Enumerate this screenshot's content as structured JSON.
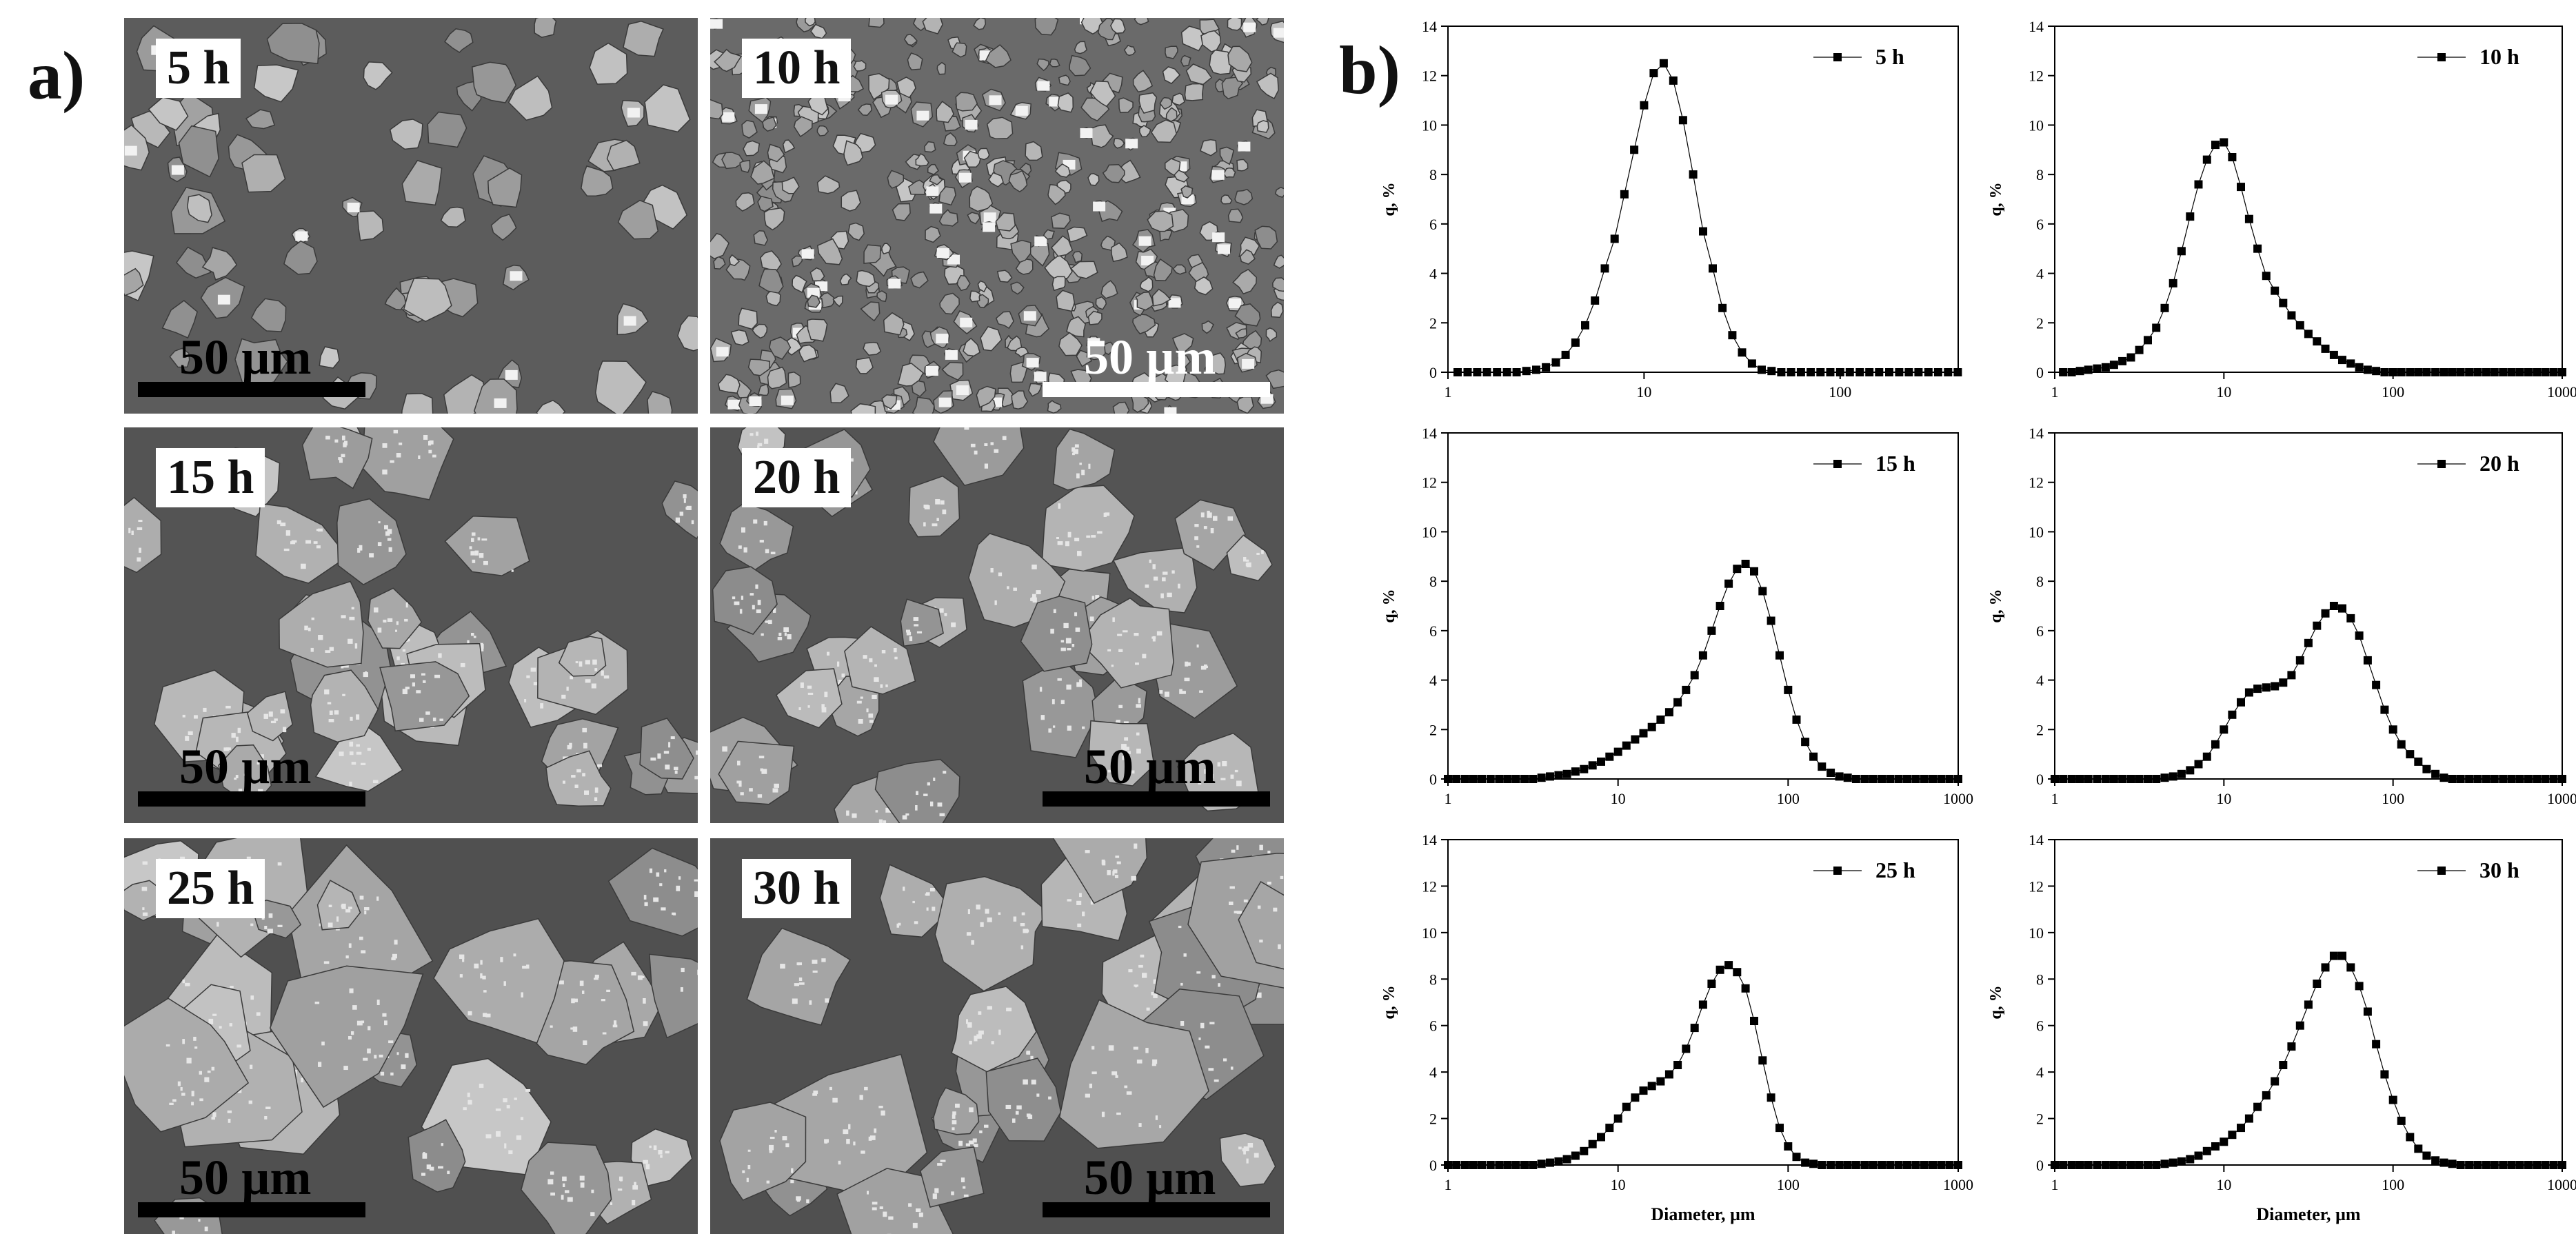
{
  "panel_labels": {
    "a": "a)",
    "b": "b)"
  },
  "sem_images": [
    {
      "time": "5 h",
      "scale": "50 µm",
      "scale_side": "left",
      "scale_color": "#000000",
      "texture": "coarse-flakes"
    },
    {
      "time": "10 h",
      "scale": "50 µm",
      "scale_side": "right",
      "scale_color": "#ffffff",
      "texture": "fine-dense"
    },
    {
      "time": "15 h",
      "scale": "50 µm",
      "scale_side": "left",
      "scale_color": "#000000",
      "texture": "agglomerates"
    },
    {
      "time": "20 h",
      "scale": "50 µm",
      "scale_side": "right",
      "scale_color": "#000000",
      "texture": "agglomerates"
    },
    {
      "time": "25 h",
      "scale": "50 µm",
      "scale_side": "left",
      "scale_color": "#000000",
      "texture": "large-agglomerates"
    },
    {
      "time": "30 h",
      "scale": "50 µm",
      "scale_side": "right",
      "scale_color": "#000000",
      "texture": "large-agglomerates"
    }
  ],
  "chart_data": [
    {
      "type": "line",
      "marker": "square",
      "legend": "5 h",
      "xscale": "log",
      "xlim": [
        1,
        400
      ],
      "ylim": [
        0,
        14
      ],
      "xticks": [
        1,
        10,
        100
      ],
      "yticks": [
        0,
        2,
        4,
        6,
        8,
        10,
        12,
        14
      ],
      "xlabel": "",
      "ylabel": "q, %",
      "x": [
        1.12,
        1.26,
        1.41,
        1.58,
        1.78,
        2,
        2.24,
        2.51,
        2.82,
        3.16,
        3.55,
        3.98,
        4.47,
        5.01,
        5.62,
        6.31,
        7.08,
        7.94,
        8.91,
        10,
        11.2,
        12.6,
        14.1,
        15.8,
        17.8,
        20,
        22.4,
        25.1,
        28.2,
        31.6,
        35.5,
        39.8,
        44.7,
        50.1,
        56.2,
        63.1,
        70.8,
        79.4,
        89.1,
        100,
        112,
        126,
        141,
        158,
        178,
        200,
        224,
        251,
        282,
        316,
        355,
        398
      ],
      "y": [
        0,
        0,
        0,
        0,
        0,
        0,
        0,
        0.05,
        0.1,
        0.2,
        0.4,
        0.7,
        1.2,
        1.9,
        2.9,
        4.2,
        5.4,
        7.2,
        9.0,
        10.8,
        12.1,
        12.5,
        11.8,
        10.2,
        8.0,
        5.7,
        4.2,
        2.6,
        1.5,
        0.8,
        0.35,
        0.1,
        0.05,
        0,
        0,
        0,
        0,
        0,
        0,
        0,
        0,
        0,
        0,
        0,
        0,
        0,
        0,
        0,
        0,
        0,
        0,
        0
      ]
    },
    {
      "type": "line",
      "marker": "square",
      "legend": "10 h",
      "xscale": "log",
      "xlim": [
        1,
        1000
      ],
      "ylim": [
        0,
        14
      ],
      "xticks": [
        1,
        10,
        100,
        1000
      ],
      "yticks": [
        0,
        2,
        4,
        6,
        8,
        10,
        12,
        14
      ],
      "xlabel": "",
      "ylabel": "q, %",
      "x": [
        1.12,
        1.26,
        1.41,
        1.58,
        1.78,
        2,
        2.24,
        2.51,
        2.82,
        3.16,
        3.55,
        3.98,
        4.47,
        5.01,
        5.62,
        6.31,
        7.08,
        7.94,
        8.91,
        10,
        11.2,
        12.6,
        14.1,
        15.8,
        17.8,
        20,
        22.4,
        25.1,
        28.2,
        31.6,
        35.5,
        39.8,
        44.7,
        50.1,
        56.2,
        63.1,
        70.8,
        79.4,
        89.1,
        100,
        112,
        126,
        141,
        158,
        178,
        200,
        224,
        251,
        282,
        316,
        355,
        398,
        447,
        501,
        562,
        631,
        708,
        794,
        891,
        1000
      ],
      "y": [
        0,
        0,
        0.05,
        0.1,
        0.15,
        0.2,
        0.3,
        0.45,
        0.6,
        0.9,
        1.3,
        1.8,
        2.6,
        3.6,
        4.9,
        6.3,
        7.6,
        8.6,
        9.2,
        9.3,
        8.7,
        7.5,
        6.2,
        5.0,
        3.9,
        3.3,
        2.8,
        2.3,
        1.9,
        1.55,
        1.25,
        0.95,
        0.7,
        0.5,
        0.35,
        0.2,
        0.1,
        0.05,
        0,
        0,
        0,
        0,
        0,
        0,
        0,
        0,
        0,
        0,
        0,
        0,
        0,
        0,
        0,
        0,
        0,
        0,
        0,
        0,
        0,
        0
      ]
    },
    {
      "type": "line",
      "marker": "square",
      "legend": "15 h",
      "xscale": "log",
      "xlim": [
        1,
        1000
      ],
      "ylim": [
        0,
        14
      ],
      "xticks": [
        1,
        10,
        100,
        1000
      ],
      "yticks": [
        0,
        2,
        4,
        6,
        8,
        10,
        12,
        14
      ],
      "xlabel": "",
      "ylabel": "q, %",
      "x": [
        1,
        1.12,
        1.26,
        1.41,
        1.58,
        1.78,
        2,
        2.24,
        2.51,
        2.82,
        3.16,
        3.55,
        3.98,
        4.47,
        5.01,
        5.62,
        6.31,
        7.08,
        7.94,
        8.91,
        10,
        11.2,
        12.6,
        14.1,
        15.8,
        17.8,
        20,
        22.4,
        25.1,
        28.2,
        31.6,
        35.5,
        39.8,
        44.7,
        50.1,
        56.2,
        63.1,
        70.8,
        79.4,
        89.1,
        100,
        112,
        126,
        141,
        158,
        178,
        200,
        224,
        251,
        282,
        316,
        355,
        398,
        447,
        501,
        562,
        631,
        708,
        794,
        891,
        1000
      ],
      "y": [
        0,
        0,
        0,
        0,
        0,
        0,
        0,
        0,
        0,
        0,
        0,
        0.05,
        0.1,
        0.15,
        0.2,
        0.3,
        0.4,
        0.55,
        0.7,
        0.9,
        1.1,
        1.35,
        1.6,
        1.85,
        2.1,
        2.4,
        2.7,
        3.1,
        3.6,
        4.2,
        5.0,
        6.0,
        7.0,
        7.9,
        8.5,
        8.7,
        8.4,
        7.6,
        6.4,
        5.0,
        3.6,
        2.4,
        1.5,
        0.9,
        0.5,
        0.25,
        0.1,
        0.05,
        0,
        0,
        0,
        0,
        0,
        0,
        0,
        0,
        0,
        0,
        0,
        0,
        0
      ]
    },
    {
      "type": "line",
      "marker": "square",
      "legend": "20 h",
      "xscale": "log",
      "xlim": [
        1,
        1000
      ],
      "ylim": [
        0,
        14
      ],
      "xticks": [
        1,
        10,
        100,
        1000
      ],
      "yticks": [
        0,
        2,
        4,
        6,
        8,
        10,
        12,
        14
      ],
      "xlabel": "",
      "ylabel": "q, %",
      "x": [
        1,
        1.12,
        1.26,
        1.41,
        1.58,
        1.78,
        2,
        2.24,
        2.51,
        2.82,
        3.16,
        3.55,
        3.98,
        4.47,
        5.01,
        5.62,
        6.31,
        7.08,
        7.94,
        8.91,
        10,
        11.2,
        12.6,
        14.1,
        15.8,
        17.8,
        20,
        22.4,
        25.1,
        28.2,
        31.6,
        35.5,
        39.8,
        44.7,
        50.1,
        56.2,
        63.1,
        70.8,
        79.4,
        89.1,
        100,
        112,
        126,
        141,
        158,
        178,
        200,
        224,
        251,
        282,
        316,
        355,
        398,
        447,
        501,
        562,
        631,
        708,
        794,
        891,
        1000
      ],
      "y": [
        0,
        0,
        0,
        0,
        0,
        0,
        0,
        0,
        0,
        0,
        0,
        0,
        0,
        0.05,
        0.1,
        0.2,
        0.35,
        0.6,
        0.9,
        1.4,
        2.0,
        2.6,
        3.1,
        3.5,
        3.65,
        3.7,
        3.75,
        3.9,
        4.2,
        4.8,
        5.5,
        6.2,
        6.7,
        7.0,
        6.9,
        6.5,
        5.8,
        4.8,
        3.8,
        2.8,
        2.0,
        1.4,
        1.0,
        0.7,
        0.4,
        0.2,
        0.05,
        0,
        0,
        0,
        0,
        0,
        0,
        0,
        0,
        0,
        0,
        0,
        0,
        0,
        0
      ]
    },
    {
      "type": "line",
      "marker": "square",
      "legend": "25 h",
      "xscale": "log",
      "xlim": [
        1,
        1000
      ],
      "ylim": [
        0,
        14
      ],
      "xticks": [
        1,
        10,
        100,
        1000
      ],
      "yticks": [
        0,
        2,
        4,
        6,
        8,
        10,
        12,
        14
      ],
      "xlabel": "Diameter, µm",
      "ylabel": "q, %",
      "x": [
        1,
        1.12,
        1.26,
        1.41,
        1.58,
        1.78,
        2,
        2.24,
        2.51,
        2.82,
        3.16,
        3.55,
        3.98,
        4.47,
        5.01,
        5.62,
        6.31,
        7.08,
        7.94,
        8.91,
        10,
        11.2,
        12.6,
        14.1,
        15.8,
        17.8,
        20,
        22.4,
        25.1,
        28.2,
        31.6,
        35.5,
        39.8,
        44.7,
        50.1,
        56.2,
        63.1,
        70.8,
        79.4,
        89.1,
        100,
        112,
        126,
        141,
        158,
        178,
        200,
        224,
        251,
        282,
        316,
        355,
        398,
        447,
        501,
        562,
        631,
        708,
        794,
        891,
        1000
      ],
      "y": [
        0,
        0,
        0,
        0,
        0,
        0,
        0,
        0,
        0,
        0,
        0,
        0.05,
        0.1,
        0.15,
        0.25,
        0.4,
        0.6,
        0.9,
        1.2,
        1.6,
        2.0,
        2.5,
        2.9,
        3.2,
        3.4,
        3.6,
        3.9,
        4.3,
        5.0,
        5.9,
        6.9,
        7.8,
        8.4,
        8.6,
        8.3,
        7.6,
        6.2,
        4.5,
        2.9,
        1.6,
        0.8,
        0.35,
        0.1,
        0.05,
        0,
        0,
        0,
        0,
        0,
        0,
        0,
        0,
        0,
        0,
        0,
        0,
        0,
        0,
        0,
        0,
        0
      ]
    },
    {
      "type": "line",
      "marker": "square",
      "legend": "30 h",
      "xscale": "log",
      "xlim": [
        1,
        1000
      ],
      "ylim": [
        0,
        14
      ],
      "xticks": [
        1,
        10,
        100,
        1000
      ],
      "yticks": [
        0,
        2,
        4,
        6,
        8,
        10,
        12,
        14
      ],
      "xlabel": "Diameter, µm",
      "ylabel": "q, %",
      "x": [
        1,
        1.12,
        1.26,
        1.41,
        1.58,
        1.78,
        2,
        2.24,
        2.51,
        2.82,
        3.16,
        3.55,
        3.98,
        4.47,
        5.01,
        5.62,
        6.31,
        7.08,
        7.94,
        8.91,
        10,
        11.2,
        12.6,
        14.1,
        15.8,
        17.8,
        20,
        22.4,
        25.1,
        28.2,
        31.6,
        35.5,
        39.8,
        44.7,
        50.1,
        56.2,
        63.1,
        70.8,
        79.4,
        89.1,
        100,
        112,
        126,
        141,
        158,
        178,
        200,
        224,
        251,
        282,
        316,
        355,
        398,
        447,
        501,
        562,
        631,
        708,
        794,
        891,
        1000
      ],
      "y": [
        0,
        0,
        0,
        0,
        0,
        0,
        0,
        0,
        0,
        0,
        0,
        0,
        0,
        0.05,
        0.1,
        0.15,
        0.25,
        0.4,
        0.6,
        0.8,
        1.0,
        1.3,
        1.6,
        2.0,
        2.5,
        3.0,
        3.6,
        4.3,
        5.1,
        6.0,
        6.9,
        7.8,
        8.5,
        9.0,
        9.0,
        8.5,
        7.7,
        6.6,
        5.2,
        3.9,
        2.8,
        1.9,
        1.2,
        0.7,
        0.4,
        0.2,
        0.1,
        0.05,
        0,
        0,
        0,
        0,
        0,
        0,
        0,
        0,
        0,
        0,
        0,
        0,
        0
      ]
    }
  ]
}
